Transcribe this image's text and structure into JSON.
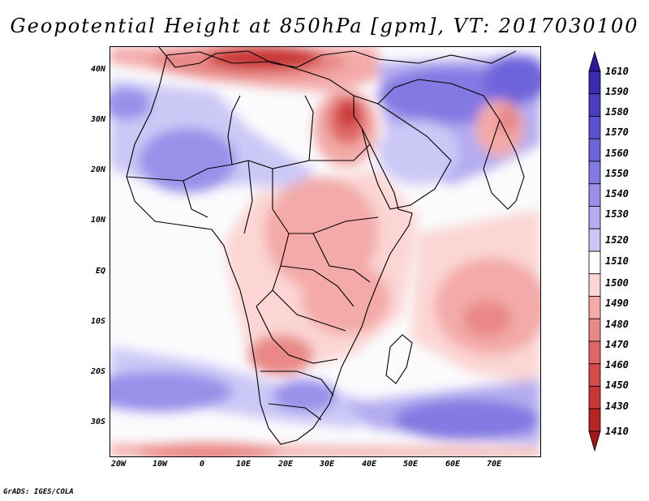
{
  "title": "Geopotential Height at 850hPa [gpm], VT: 2017030100",
  "footer": "GrADS: IGES/COLA",
  "map": {
    "lon_range": [
      -23,
      80
    ],
    "lat_range": [
      -36,
      45
    ],
    "lat_ticks": [
      {
        "value": 40,
        "label": "40N"
      },
      {
        "value": 30,
        "label": "30N"
      },
      {
        "value": 20,
        "label": "20N"
      },
      {
        "value": 10,
        "label": "10N"
      },
      {
        "value": 0,
        "label": "EQ"
      },
      {
        "value": -10,
        "label": "10S"
      },
      {
        "value": -20,
        "label": "20S"
      },
      {
        "value": -30,
        "label": "30S"
      }
    ],
    "lon_ticks": [
      {
        "value": -20,
        "label": "20W"
      },
      {
        "value": -10,
        "label": "10W"
      },
      {
        "value": 0,
        "label": "0"
      },
      {
        "value": 10,
        "label": "10E"
      },
      {
        "value": 20,
        "label": "20E"
      },
      {
        "value": 30,
        "label": "30E"
      },
      {
        "value": 40,
        "label": "40E"
      },
      {
        "value": 50,
        "label": "50E"
      },
      {
        "value": 60,
        "label": "60E"
      },
      {
        "value": 70,
        "label": "70E"
      }
    ]
  },
  "colorbar": {
    "levels": [
      "1610",
      "1590",
      "1580",
      "1570",
      "1560",
      "1550",
      "1540",
      "1530",
      "1520",
      "1510",
      "1500",
      "1490",
      "1480",
      "1470",
      "1460",
      "1450",
      "1430",
      "1410"
    ],
    "colors": [
      "#2a1a9c",
      "#3a2ab0",
      "#4b3cc2",
      "#5c50cf",
      "#6e64da",
      "#8478e2",
      "#9a90ea",
      "#b4acf0",
      "#ccc8f6",
      "#ffffff",
      "#fbd6d4",
      "#f3aaa8",
      "#e98886",
      "#df6663",
      "#d64a48",
      "#c93434",
      "#b82424",
      "#a01818"
    ],
    "top_arrow_color": "#2a1a9c",
    "bottom_arrow_color": "#a01818"
  }
}
